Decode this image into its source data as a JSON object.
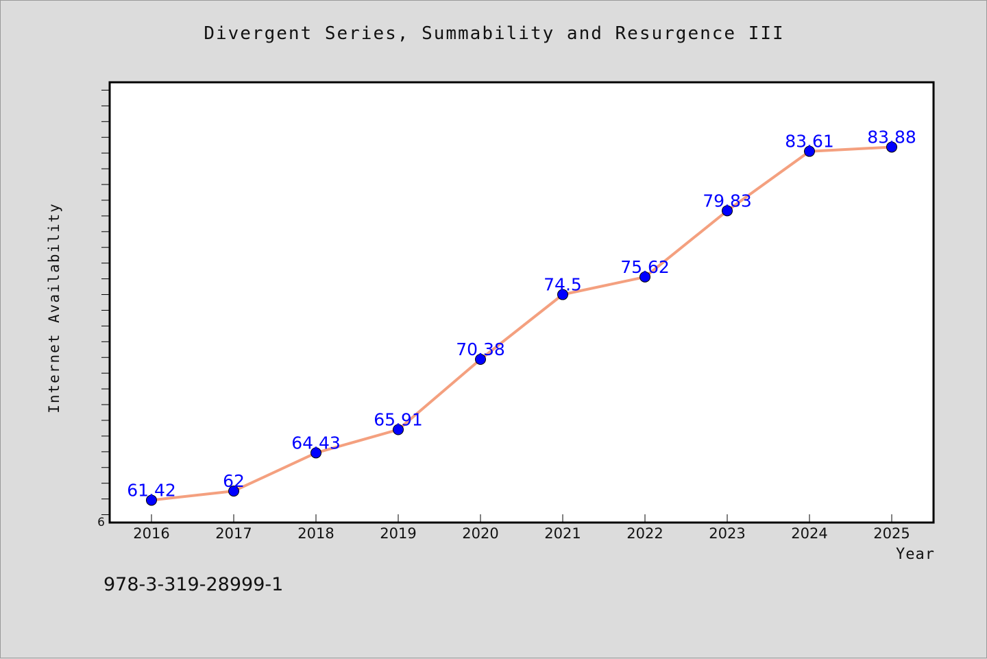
{
  "chart_data": {
    "type": "line",
    "title": "Divergent Series, Summability and Resurgence III",
    "xlabel": "Year",
    "ylabel": "Internet Availability",
    "x": [
      "2016",
      "2017",
      "2018",
      "2019",
      "2020",
      "2021",
      "2022",
      "2023",
      "2024",
      "2025"
    ],
    "series": [
      {
        "values": [
          61.42,
          62,
          64.43,
          65.91,
          70.38,
          74.5,
          75.62,
          79.83,
          83.61,
          83.88
        ]
      }
    ],
    "data_labels": [
      "61.42",
      "62",
      "64.43",
      "65.91",
      "70.38",
      "74.5",
      "75.62",
      "79.83",
      "83.61",
      "83.88"
    ],
    "y_tick_labels": [
      "6"
    ],
    "ylim": [
      60,
      88
    ],
    "grid": false,
    "legend": "none",
    "colors": {
      "line": "#f4a07f",
      "marker": "#0000ff",
      "label": "#0000ff",
      "background": "#dcdcdc",
      "plot_background": "#ffffff"
    }
  },
  "footer_text": "978-3-319-28999-1"
}
